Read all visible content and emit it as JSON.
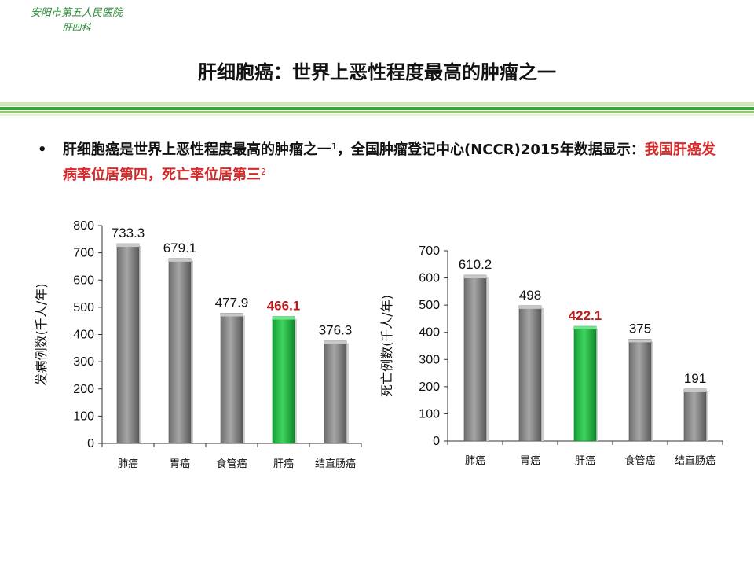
{
  "header": {
    "logo_line1": "安阳市第五人民医院",
    "logo_line2": "肝四科",
    "title": "肝细胞癌：世界上恶性程度最高的肿瘤之一"
  },
  "bullet": {
    "symbol": "•",
    "text_a": "肝细胞癌是世界上恶性程度最高的肿瘤之一",
    "ref1": "1",
    "text_b": "，全国肿瘤登记中心(NCCR)2015年数据显示：",
    "text_red": "我国肝癌发病率位居第四，死亡率位居第三",
    "ref2": "2"
  },
  "colors": {
    "bar_gray": "#8c8c8c",
    "bar_green": "#22bb44",
    "highlight_text": "#c0191c",
    "logo_green": "#2e8b3a"
  },
  "chart_data": [
    {
      "type": "bar",
      "ylabel": "发病例数(千人/年)",
      "categories": [
        "肺癌",
        "胃癌",
        "食管癌",
        "肝癌",
        "结直肠癌"
      ],
      "values": [
        733.3,
        679.1,
        477.9,
        466.1,
        376.3
      ],
      "value_labels": [
        "733.3",
        "679.1",
        "477.9",
        "466.1",
        "376.3"
      ],
      "highlight_index": 3,
      "ylim": [
        0,
        800
      ],
      "yticks": [
        "0",
        "100",
        "200",
        "300",
        "400",
        "500",
        "600",
        "700",
        "800"
      ],
      "grid": false
    },
    {
      "type": "bar",
      "ylabel": "死亡例数(千人/年)",
      "categories": [
        "肺癌",
        "胃癌",
        "肝癌",
        "食管癌",
        "结直肠癌"
      ],
      "values": [
        610.2,
        498,
        422.1,
        375,
        191
      ],
      "value_labels": [
        "610.2",
        "498",
        "422.1",
        "375",
        "191"
      ],
      "highlight_index": 2,
      "ylim": [
        0,
        700
      ],
      "yticks": [
        "0",
        "100",
        "200",
        "300",
        "400",
        "500",
        "600",
        "700"
      ],
      "grid": false
    }
  ]
}
